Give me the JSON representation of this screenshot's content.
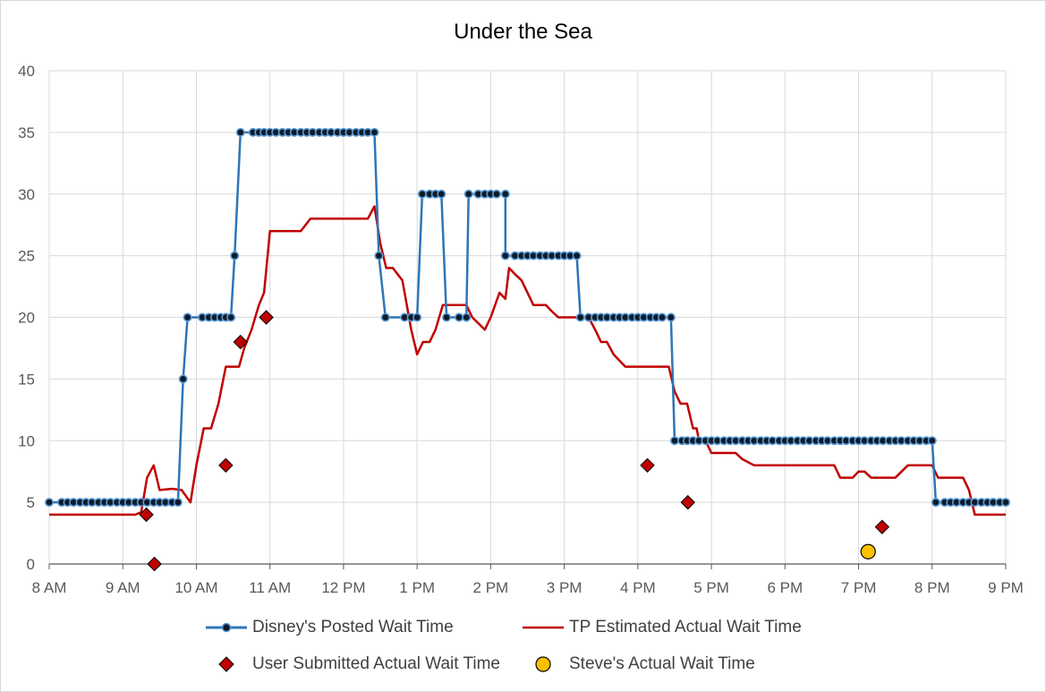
{
  "chart_data": {
    "type": "line",
    "title": "Under the Sea",
    "xlabel": "",
    "ylabel": "",
    "ylim": [
      0,
      40
    ],
    "yticks": [
      "0",
      "5",
      "10",
      "15",
      "20",
      "25",
      "30",
      "35",
      "40"
    ],
    "xlim": [
      8,
      21
    ],
    "xticks": [
      "8 AM",
      "9 AM",
      "10 AM",
      "11 AM",
      "12 PM",
      "1 PM",
      "2 PM",
      "3 PM",
      "4 PM",
      "5 PM",
      "6 PM",
      "7 PM",
      "8 PM",
      "9 PM"
    ],
    "grid": true,
    "legend_position": "bottom",
    "colors": {
      "posted": "#2e75b6",
      "posted_marker": "#0d1b2a",
      "tp": "#c00000",
      "user": "#c00000",
      "steve": "#ffc000"
    },
    "series": [
      {
        "name": "Disney's Posted Wait Time",
        "type": "line-markers",
        "points": [
          [
            8.0,
            5
          ],
          [
            8.17,
            5
          ],
          [
            8.25,
            5
          ],
          [
            8.33,
            5
          ],
          [
            8.42,
            5
          ],
          [
            8.5,
            5
          ],
          [
            8.58,
            5
          ],
          [
            8.67,
            5
          ],
          [
            8.75,
            5
          ],
          [
            8.83,
            5
          ],
          [
            8.92,
            5
          ],
          [
            9.0,
            5
          ],
          [
            9.08,
            5
          ],
          [
            9.17,
            5
          ],
          [
            9.25,
            5
          ],
          [
            9.33,
            5
          ],
          [
            9.42,
            5
          ],
          [
            9.5,
            5
          ],
          [
            9.58,
            5
          ],
          [
            9.67,
            5
          ],
          [
            9.75,
            5
          ],
          [
            9.82,
            15
          ],
          [
            9.88,
            20
          ],
          [
            10.08,
            20
          ],
          [
            10.17,
            20
          ],
          [
            10.25,
            20
          ],
          [
            10.33,
            20
          ],
          [
            10.4,
            20
          ],
          [
            10.47,
            20
          ],
          [
            10.52,
            25
          ],
          [
            10.6,
            35
          ],
          [
            10.77,
            35
          ],
          [
            10.85,
            35
          ],
          [
            10.92,
            35
          ],
          [
            11.0,
            35
          ],
          [
            11.08,
            35
          ],
          [
            11.17,
            35
          ],
          [
            11.25,
            35
          ],
          [
            11.33,
            35
          ],
          [
            11.42,
            35
          ],
          [
            11.5,
            35
          ],
          [
            11.58,
            35
          ],
          [
            11.67,
            35
          ],
          [
            11.75,
            35
          ],
          [
            11.83,
            35
          ],
          [
            11.92,
            35
          ],
          [
            12.0,
            35
          ],
          [
            12.08,
            35
          ],
          [
            12.17,
            35
          ],
          [
            12.25,
            35
          ],
          [
            12.33,
            35
          ],
          [
            12.42,
            35
          ],
          [
            12.48,
            25
          ],
          [
            12.57,
            20
          ],
          [
            12.83,
            20
          ],
          [
            12.92,
            20
          ],
          [
            13.0,
            20
          ],
          [
            13.07,
            30
          ],
          [
            13.17,
            30
          ],
          [
            13.25,
            30
          ],
          [
            13.33,
            30
          ],
          [
            13.4,
            20
          ],
          [
            13.57,
            20
          ],
          [
            13.67,
            20
          ],
          [
            13.7,
            30
          ],
          [
            13.83,
            30
          ],
          [
            13.92,
            30
          ],
          [
            14.0,
            30
          ],
          [
            14.08,
            30
          ],
          [
            14.2,
            30
          ],
          [
            14.2,
            25
          ],
          [
            14.33,
            25
          ],
          [
            14.42,
            25
          ],
          [
            14.5,
            25
          ],
          [
            14.58,
            25
          ],
          [
            14.67,
            25
          ],
          [
            14.75,
            25
          ],
          [
            14.83,
            25
          ],
          [
            14.92,
            25
          ],
          [
            15.0,
            25
          ],
          [
            15.08,
            25
          ],
          [
            15.17,
            25
          ],
          [
            15.22,
            20
          ],
          [
            15.33,
            20
          ],
          [
            15.42,
            20
          ],
          [
            15.5,
            20
          ],
          [
            15.58,
            20
          ],
          [
            15.67,
            20
          ],
          [
            15.75,
            20
          ],
          [
            15.83,
            20
          ],
          [
            15.92,
            20
          ],
          [
            16.0,
            20
          ],
          [
            16.08,
            20
          ],
          [
            16.17,
            20
          ],
          [
            16.25,
            20
          ],
          [
            16.33,
            20
          ],
          [
            16.45,
            20
          ],
          [
            16.5,
            10
          ],
          [
            16.6,
            10
          ],
          [
            16.67,
            10
          ],
          [
            16.75,
            10
          ],
          [
            16.83,
            10
          ],
          [
            16.92,
            10
          ],
          [
            17.0,
            10
          ],
          [
            17.08,
            10
          ],
          [
            17.17,
            10
          ],
          [
            17.25,
            10
          ],
          [
            17.33,
            10
          ],
          [
            17.42,
            10
          ],
          [
            17.5,
            10
          ],
          [
            17.58,
            10
          ],
          [
            17.67,
            10
          ],
          [
            17.75,
            10
          ],
          [
            17.83,
            10
          ],
          [
            17.92,
            10
          ],
          [
            18.0,
            10
          ],
          [
            18.08,
            10
          ],
          [
            18.17,
            10
          ],
          [
            18.25,
            10
          ],
          [
            18.33,
            10
          ],
          [
            18.42,
            10
          ],
          [
            18.5,
            10
          ],
          [
            18.58,
            10
          ],
          [
            18.67,
            10
          ],
          [
            18.75,
            10
          ],
          [
            18.83,
            10
          ],
          [
            18.92,
            10
          ],
          [
            19.0,
            10
          ],
          [
            19.08,
            10
          ],
          [
            19.17,
            10
          ],
          [
            19.25,
            10
          ],
          [
            19.33,
            10
          ],
          [
            19.42,
            10
          ],
          [
            19.5,
            10
          ],
          [
            19.58,
            10
          ],
          [
            19.67,
            10
          ],
          [
            19.75,
            10
          ],
          [
            19.83,
            10
          ],
          [
            19.92,
            10
          ],
          [
            20.0,
            10
          ],
          [
            20.05,
            5
          ],
          [
            20.17,
            5
          ],
          [
            20.25,
            5
          ],
          [
            20.33,
            5
          ],
          [
            20.42,
            5
          ],
          [
            20.5,
            5
          ],
          [
            20.58,
            5
          ],
          [
            20.67,
            5
          ],
          [
            20.75,
            5
          ],
          [
            20.83,
            5
          ],
          [
            20.92,
            5
          ],
          [
            21.0,
            5
          ]
        ]
      },
      {
        "name": "TP Estimated Actual Wait Time",
        "type": "line",
        "points": [
          [
            8.0,
            4
          ],
          [
            9.17,
            4
          ],
          [
            9.25,
            4.2
          ],
          [
            9.33,
            7
          ],
          [
            9.42,
            8
          ],
          [
            9.5,
            6
          ],
          [
            9.67,
            6.1
          ],
          [
            9.8,
            6
          ],
          [
            9.92,
            5
          ],
          [
            10.0,
            8
          ],
          [
            10.1,
            11
          ],
          [
            10.2,
            11
          ],
          [
            10.3,
            13
          ],
          [
            10.4,
            16
          ],
          [
            10.5,
            16
          ],
          [
            10.58,
            16
          ],
          [
            10.65,
            17.5
          ],
          [
            10.75,
            19
          ],
          [
            10.85,
            21
          ],
          [
            10.92,
            22
          ],
          [
            11.0,
            27
          ],
          [
            11.42,
            27
          ],
          [
            11.55,
            28
          ],
          [
            12.33,
            28
          ],
          [
            12.42,
            29
          ],
          [
            12.5,
            26
          ],
          [
            12.58,
            24
          ],
          [
            12.67,
            24
          ],
          [
            12.8,
            23
          ],
          [
            12.92,
            19
          ],
          [
            13.0,
            17
          ],
          [
            13.08,
            18
          ],
          [
            13.17,
            18
          ],
          [
            13.25,
            19
          ],
          [
            13.35,
            21
          ],
          [
            13.5,
            21
          ],
          [
            13.67,
            21
          ],
          [
            13.75,
            20
          ],
          [
            13.92,
            19
          ],
          [
            14.0,
            20
          ],
          [
            14.12,
            22
          ],
          [
            14.2,
            21.5
          ],
          [
            14.25,
            24
          ],
          [
            14.33,
            23.5
          ],
          [
            14.42,
            23
          ],
          [
            14.5,
            22
          ],
          [
            14.58,
            21
          ],
          [
            14.75,
            21
          ],
          [
            14.83,
            20.5
          ],
          [
            14.92,
            20
          ],
          [
            15.17,
            20
          ],
          [
            15.25,
            20
          ],
          [
            15.33,
            20
          ],
          [
            15.42,
            19
          ],
          [
            15.5,
            18
          ],
          [
            15.58,
            18
          ],
          [
            15.67,
            17
          ],
          [
            15.75,
            16.5
          ],
          [
            15.83,
            16
          ],
          [
            16.0,
            16
          ],
          [
            16.25,
            16
          ],
          [
            16.42,
            16
          ],
          [
            16.5,
            14
          ],
          [
            16.58,
            13
          ],
          [
            16.67,
            13
          ],
          [
            16.75,
            11
          ],
          [
            16.8,
            11
          ],
          [
            16.83,
            10
          ],
          [
            16.92,
            10
          ],
          [
            17.0,
            9
          ],
          [
            17.25,
            9
          ],
          [
            17.33,
            9
          ],
          [
            17.42,
            8.5
          ],
          [
            17.58,
            8
          ],
          [
            18.0,
            8
          ],
          [
            18.5,
            8
          ],
          [
            18.67,
            8
          ],
          [
            18.75,
            7
          ],
          [
            18.92,
            7
          ],
          [
            19.0,
            7.5
          ],
          [
            19.08,
            7.5
          ],
          [
            19.17,
            7
          ],
          [
            19.25,
            7
          ],
          [
            19.5,
            7
          ],
          [
            19.67,
            8
          ],
          [
            19.92,
            8
          ],
          [
            20.0,
            8
          ],
          [
            20.08,
            7
          ],
          [
            20.33,
            7
          ],
          [
            20.42,
            7
          ],
          [
            20.5,
            6
          ],
          [
            20.58,
            4
          ],
          [
            20.67,
            4
          ],
          [
            21.0,
            4
          ]
        ]
      },
      {
        "name": "User Submitted Actual Wait Time",
        "type": "scatter",
        "marker": "diamond",
        "points": [
          [
            9.32,
            4
          ],
          [
            9.43,
            0
          ],
          [
            10.4,
            8
          ],
          [
            10.6,
            18
          ],
          [
            10.95,
            20
          ],
          [
            16.13,
            8
          ],
          [
            16.68,
            5
          ],
          [
            19.32,
            3
          ]
        ]
      },
      {
        "name": "Steve's Actual Wait Time",
        "type": "scatter",
        "marker": "circle",
        "points": [
          [
            19.13,
            1
          ]
        ]
      }
    ]
  }
}
